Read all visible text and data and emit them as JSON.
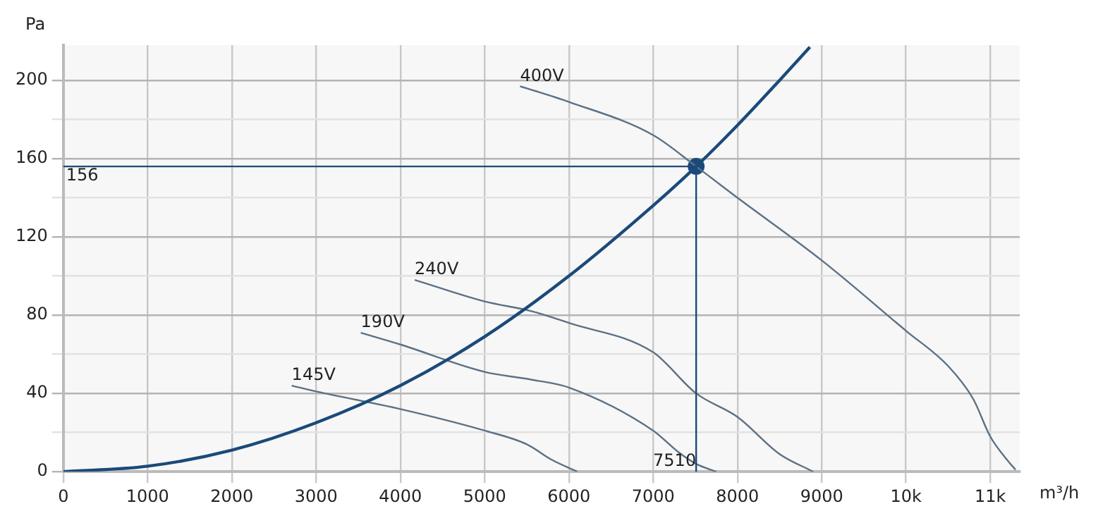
{
  "chart_data": {
    "type": "line",
    "xlabel": "m³/h",
    "ylabel": "Pa",
    "xlim": [
      0,
      11350
    ],
    "ylim": [
      0,
      218
    ],
    "xticks": [
      0,
      1000,
      2000,
      3000,
      4000,
      5000,
      6000,
      7000,
      8000,
      9000,
      {
        "value": 10000,
        "label": "10k"
      },
      {
        "value": 11000,
        "label": "11k"
      }
    ],
    "yticks": [
      0,
      {
        "value": 20,
        "label": null
      },
      40,
      {
        "value": 60,
        "label": null
      },
      80,
      {
        "value": 100,
        "label": null
      },
      120,
      {
        "value": 140,
        "label": null
      },
      160,
      {
        "value": 180,
        "label": null
      },
      200
    ],
    "grid": true,
    "legend": false,
    "marker": "none",
    "line_style": "solid",
    "series": [
      {
        "color": "#1b4a7a",
        "x": [
          0,
          1000,
          2000,
          3000,
          4000,
          5000,
          6000,
          7000,
          7510,
          8000,
          8500,
          8860
        ],
        "values": [
          0,
          2.8,
          11,
          25,
          44,
          69,
          100,
          136,
          156,
          177,
          200,
          217
        ]
      },
      {
        "name": "400V",
        "color": "#5d7184",
        "x": [
          5420,
          6000,
          7000,
          7510,
          8000,
          9000,
          10000,
          10500,
          10800,
          11000,
          11200,
          11300
        ],
        "values": [
          197,
          189,
          172,
          156,
          140,
          108,
          72,
          54,
          37,
          18,
          6,
          1
        ]
      },
      {
        "name": "240V",
        "color": "#5d7184",
        "x": [
          4170,
          5000,
          5560,
          6000,
          7000,
          7510,
          8000,
          8500,
          8900
        ],
        "values": [
          98,
          87,
          82,
          76,
          61,
          40,
          28,
          9,
          0
        ]
      },
      {
        "name": "190V",
        "color": "#5d7184",
        "x": [
          3530,
          4000,
          5000,
          5560,
          6000,
          7000,
          7300,
          7510,
          7750
        ],
        "values": [
          71,
          65,
          51,
          47,
          43,
          21,
          10,
          4,
          0
        ]
      },
      {
        "name": "145V",
        "color": "#5d7184",
        "x": [
          2710,
          3000,
          4000,
          5000,
          5500,
          5800,
          6100
        ],
        "values": [
          44,
          41,
          32,
          21,
          14,
          6,
          0
        ]
      },
      {
        "type": "scatter",
        "marker": "circle",
        "color": "#1b4a7a",
        "x": [
          7510
        ],
        "values": [
          156
        ]
      }
    ],
    "ref_lines": [
      {
        "axis": "y",
        "value": 156,
        "label": "156",
        "color": "#1b4a7a"
      },
      {
        "axis": "x",
        "value": 7510,
        "label": "7510",
        "color": "#1b4a7a"
      }
    ]
  }
}
